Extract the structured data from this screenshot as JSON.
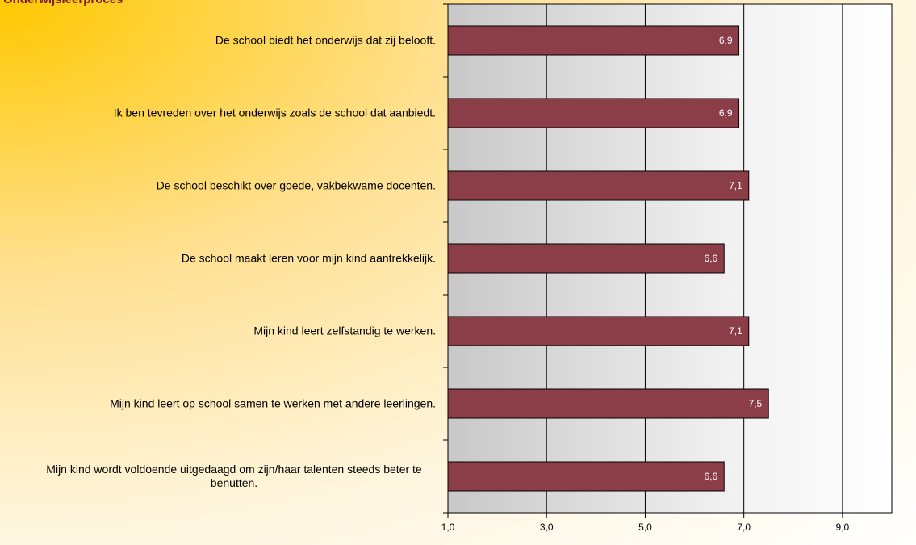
{
  "chart_data": {
    "type": "bar",
    "orientation": "horizontal",
    "title": "Onderwijsleerproces",
    "categories": [
      "De school biedt het onderwijs dat zij belooft.",
      "Ik ben tevreden over het onderwijs zoals de school dat aanbiedt.",
      "De school beschikt over goede, vakbekwame docenten.",
      "De school maakt leren voor mijn kind aantrekkelijk.",
      "Mijn kind leert zelfstandig te werken.",
      "Mijn kind leert op school samen te werken met andere leerlingen.",
      "Mijn kind wordt voldoende uitgedaagd om zijn/haar talenten steeds beter te benutten."
    ],
    "values": [
      6.9,
      6.9,
      7.1,
      6.6,
      7.1,
      7.5,
      6.6
    ],
    "value_labels": [
      "6,9",
      "6,9",
      "7,1",
      "6,6",
      "7,1",
      "7,5",
      "6,6"
    ],
    "color": "#8b3e48",
    "xlim": [
      1,
      10
    ],
    "xticks": [
      {
        "value": 1,
        "label": "1,0"
      },
      {
        "value": 3,
        "label": "3,0"
      },
      {
        "value": 5,
        "label": "5,0"
      },
      {
        "value": 7,
        "label": "7,0"
      },
      {
        "value": 9,
        "label": "9,0"
      }
    ],
    "grid": true
  }
}
